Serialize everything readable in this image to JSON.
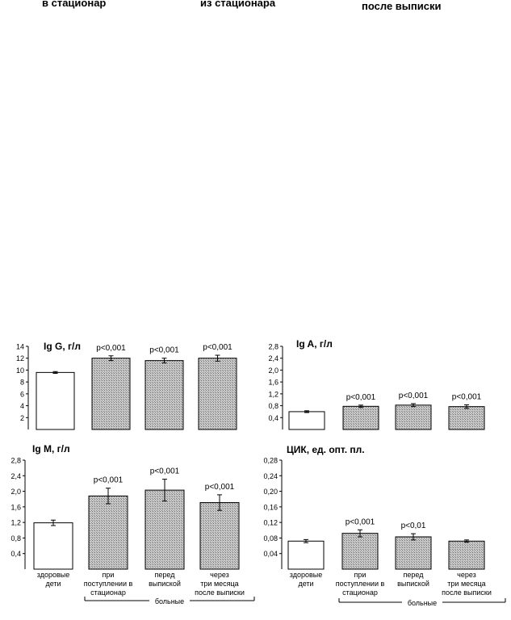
{
  "top_labels": [
    "в стационар",
    "из стационара",
    "после выписки"
  ],
  "colors": {
    "healthy_fill": "#ffffff",
    "patient_fill": "#b8b8b8",
    "stroke": "#000000"
  },
  "x_labels": [
    [
      "здоровые",
      "дети"
    ],
    [
      "при",
      "поступлении в",
      "стационар"
    ],
    [
      "перед",
      "выпиской"
    ],
    [
      "через",
      "три месяца",
      "после выписки"
    ]
  ],
  "group_label": "больные",
  "chart_data": [
    {
      "type": "bar",
      "title": "Ig G, г/л",
      "ylim": [
        0,
        14
      ],
      "ytick_labels": [
        "2",
        "4",
        "6",
        "8",
        "10",
        "12",
        "14"
      ],
      "values": [
        9.6,
        12.0,
        11.6,
        12.0
      ],
      "errors": [
        0.15,
        0.4,
        0.4,
        0.5
      ],
      "annotations": [
        "",
        "p<0,001",
        "p<0,001",
        "p<0,001"
      ]
    },
    {
      "type": "bar",
      "title": "Ig A, г/л",
      "ylim": [
        0,
        2.8
      ],
      "ytick_labels": [
        "0,4",
        "0,8",
        "1,2",
        "1,6",
        "2,0",
        "2,4",
        "2,8"
      ],
      "values": [
        0.6,
        0.78,
        0.82,
        0.77
      ],
      "errors": [
        0.03,
        0.04,
        0.05,
        0.06
      ],
      "annotations": [
        "",
        "p<0,001",
        "p<0,001",
        "p<0,001"
      ]
    },
    {
      "type": "bar",
      "title": "Ig M, г/л",
      "ylim": [
        0,
        2.8
      ],
      "ytick_labels": [
        "0,4",
        "0,8",
        "1,2",
        "1,6",
        "2,0",
        "2,4",
        "2,8"
      ],
      "values": [
        1.19,
        1.88,
        2.03,
        1.71
      ],
      "errors": [
        0.07,
        0.2,
        0.28,
        0.2
      ],
      "annotations": [
        "",
        "p<0,001",
        "p<0,001",
        "p<0,001"
      ]
    },
    {
      "type": "bar",
      "title": "ЦИК, ед. опт. пл.",
      "ylim": [
        0,
        0.28
      ],
      "ytick_labels": [
        "0,04",
        "0,08",
        "0,12",
        "0,16",
        "0,20",
        "0,24",
        "0,28"
      ],
      "values": [
        0.072,
        0.092,
        0.083,
        0.072
      ],
      "errors": [
        0.004,
        0.009,
        0.008,
        0.003
      ],
      "annotations": [
        "",
        "p<0,001",
        "p<0,01",
        ""
      ]
    }
  ]
}
